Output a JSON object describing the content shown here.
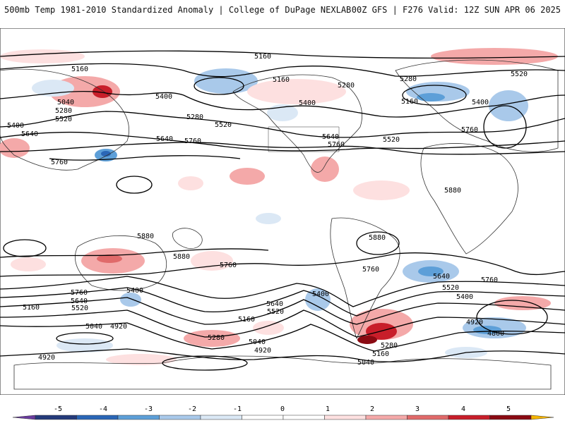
{
  "header": {
    "title_left": "500mb Temp 1981-2010 Standardized Anomaly | College of DuPage NEXLAB",
    "title_right": "00Z GFS | F276 Valid: 12Z SUN APR 06 2025"
  },
  "colors": {
    "land_outline": "#333333",
    "contour": "#000000",
    "warm": [
      "#fde0e0",
      "#f4a9a9",
      "#e06a6a",
      "#c81e2a",
      "#8a0a12"
    ],
    "cool": [
      "#dbe8f5",
      "#a9c9ea",
      "#5d9fd8",
      "#2a66b6",
      "#243a7a"
    ],
    "extreme_pos": "#f5b400",
    "extreme_neg": "#6a3c9e"
  },
  "contour_labels": [
    {
      "t": "5160"
    },
    {
      "t": "5160"
    },
    {
      "t": "5160"
    },
    {
      "t": "5280"
    },
    {
      "t": "5280"
    },
    {
      "t": "5520"
    },
    {
      "t": "5040"
    },
    {
      "t": "5280"
    },
    {
      "t": "5400"
    },
    {
      "t": "5400"
    },
    {
      "t": "5160"
    },
    {
      "t": "5400"
    },
    {
      "t": "5520"
    },
    {
      "t": "5520"
    },
    {
      "t": "5280"
    },
    {
      "t": "5400"
    },
    {
      "t": "5640"
    },
    {
      "t": "5640"
    },
    {
      "t": "5640"
    },
    {
      "t": "5760"
    },
    {
      "t": "5760"
    },
    {
      "t": "5520"
    },
    {
      "t": "5760"
    },
    {
      "t": "5760"
    },
    {
      "t": "5880"
    },
    {
      "t": "5880"
    },
    {
      "t": "5880"
    },
    {
      "t": "5880"
    },
    {
      "t": "5760"
    },
    {
      "t": "5760"
    },
    {
      "t": "5640"
    },
    {
      "t": "5760"
    },
    {
      "t": "5520"
    },
    {
      "t": "5400"
    },
    {
      "t": "5760"
    },
    {
      "t": "5640"
    },
    {
      "t": "5520"
    },
    {
      "t": "5160"
    },
    {
      "t": "5400"
    },
    {
      "t": "5640"
    },
    {
      "t": "5520"
    },
    {
      "t": "5400"
    },
    {
      "t": "5040"
    },
    {
      "t": "4920"
    },
    {
      "t": "5280"
    },
    {
      "t": "5160"
    },
    {
      "t": "5040"
    },
    {
      "t": "4920"
    },
    {
      "t": "4920"
    },
    {
      "t": "4920"
    },
    {
      "t": "4800"
    },
    {
      "t": "5280"
    },
    {
      "t": "5160"
    },
    {
      "t": "5040"
    }
  ],
  "colorbar": {
    "ticks": [
      "-5",
      "-4",
      "-3",
      "-2",
      "-1",
      "0",
      "1",
      "2",
      "3",
      "4",
      "5"
    ],
    "segments": [
      "#243a7a",
      "#2a66b6",
      "#5d9fd8",
      "#a9c9ea",
      "#dbe8f5",
      "#ffffff",
      "#ffffff",
      "#fde0e0",
      "#f4a9a9",
      "#e06a6a",
      "#c81e2a",
      "#8a0a12"
    ]
  }
}
